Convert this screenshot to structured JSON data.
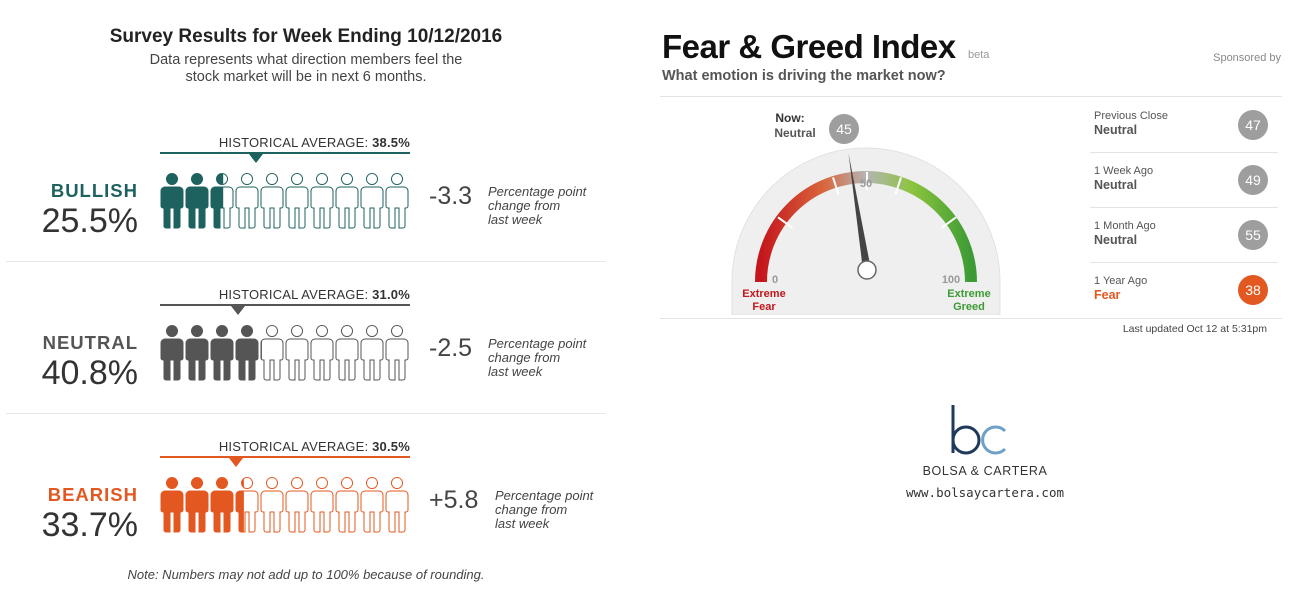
{
  "survey": {
    "title": "Survey Results for Week Ending 10/12/2016",
    "subtitle_line1": "Data represents what direction members feel the",
    "subtitle_line2": "stock market will be in next 6 months.",
    "footnote": "Note: Numbers may not add up to 100% because of rounding.",
    "hist_prefix": "HISTORICAL AVERAGE:",
    "change_note_line1": "Percentage point",
    "change_note_line2": "change from",
    "change_note_line3": "last week",
    "rows": [
      {
        "label": "BULLISH",
        "percent": "25.5%",
        "value": 25.5,
        "historical": "38.5%",
        "historical_value": 38.5,
        "change": "-3.3",
        "color": "#1e625f"
      },
      {
        "label": "NEUTRAL",
        "percent": "40.8%",
        "value": 40.8,
        "historical": "31.0%",
        "historical_value": 31.0,
        "change": "-2.5",
        "color": "#555555"
      },
      {
        "label": "BEARISH",
        "percent": "33.7%",
        "value": 33.7,
        "historical": "30.5%",
        "historical_value": 30.5,
        "change": "+5.8",
        "color": "#e35820"
      }
    ]
  },
  "fear_greed": {
    "title": "Fear & Greed Index",
    "beta": "beta",
    "sponsored": "Sponsored by",
    "subtitle": "What emotion is driving the market now?",
    "now_label": "Now:",
    "now_state": "Neutral",
    "now_value": 45,
    "now_value_text": "45",
    "scale_min": "0",
    "scale_mid": "50",
    "scale_max": "100",
    "extreme_fear_1": "Extreme",
    "extreme_fear_2": "Fear",
    "extreme_greed_1": "Extreme",
    "extreme_greed_2": "Greed",
    "history": [
      {
        "label": "Previous Close",
        "state": "Neutral",
        "value": "47",
        "color": "#9e9e9e",
        "text_color": "#555555"
      },
      {
        "label": "1 Week Ago",
        "state": "Neutral",
        "value": "49",
        "color": "#9e9e9e",
        "text_color": "#555555"
      },
      {
        "label": "1 Month Ago",
        "state": "Neutral",
        "value": "55",
        "color": "#9e9e9e",
        "text_color": "#555555"
      },
      {
        "label": "1 Year Ago",
        "state": "Fear",
        "value": "38",
        "color": "#e35820",
        "text_color": "#e35820"
      }
    ],
    "updated": "Last updated Oct 12 at 5:31pm"
  },
  "logo": {
    "mark": "bc",
    "name": "BOLSA & CARTERA",
    "url": "www.bolsaycartera.com"
  },
  "chart_data": [
    {
      "type": "bar",
      "title": "Survey Results for Week Ending 10/12/2016",
      "categories": [
        "BULLISH",
        "NEUTRAL",
        "BEARISH"
      ],
      "series": [
        {
          "name": "",
          "values": [
            25.5,
            40.8,
            33.7
          ]
        },
        {
          "name": "HISTORICAL AVERAGE",
          "values": [
            38.5,
            31.0,
            30.5
          ]
        }
      ],
      "change": [
        -3.3,
        -2.5,
        5.8
      ],
      "ylim": [
        0,
        100
      ]
    },
    {
      "type": "gauge",
      "title": "Fear & Greed Index",
      "value": 45,
      "range": [
        0,
        100
      ],
      "history": {
        "Previous Close": 47,
        "1 Week Ago": 49,
        "1 Month Ago": 55,
        "1 Year Ago": 38
      }
    }
  ]
}
